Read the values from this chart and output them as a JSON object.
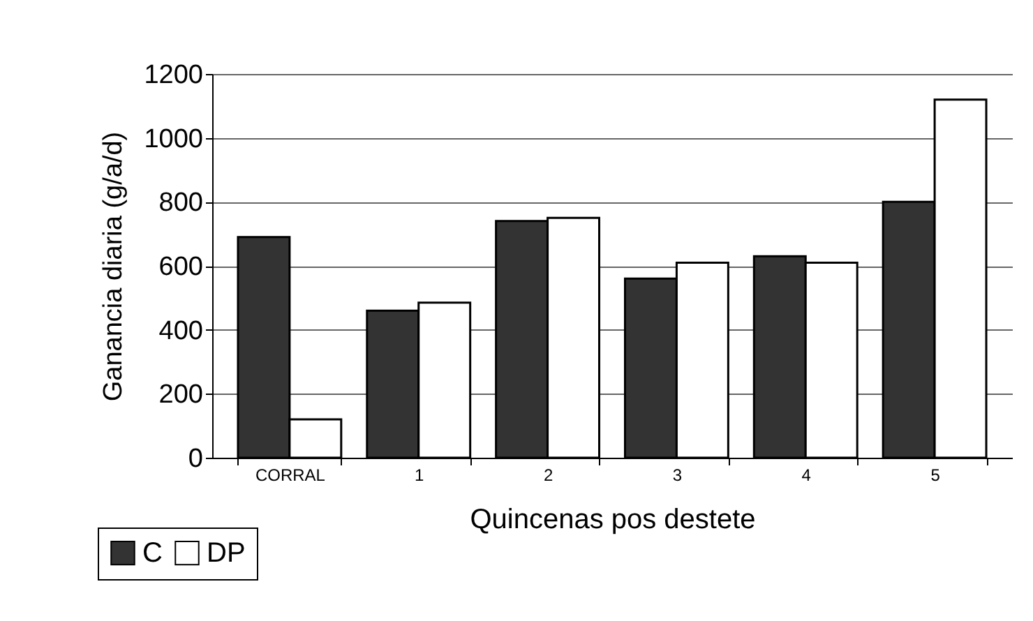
{
  "chart_data": {
    "type": "bar",
    "xlabel": "Quincenas pos destete",
    "ylabel": "Ganancia diaria (g/a/d)",
    "categories": [
      "CORRAL",
      "1",
      "2",
      "3",
      "4",
      "5"
    ],
    "series": [
      {
        "name": "C",
        "color": "#333333",
        "values": [
          690,
          460,
          740,
          560,
          630,
          800
        ]
      },
      {
        "name": "DP",
        "color": "#ffffff",
        "values": [
          120,
          485,
          750,
          610,
          610,
          1120
        ]
      }
    ],
    "ylim": [
      0,
      1200
    ],
    "yticks": [
      0,
      200,
      400,
      600,
      800,
      1000,
      1200
    ],
    "grid": "y",
    "legend": "bottom left"
  }
}
